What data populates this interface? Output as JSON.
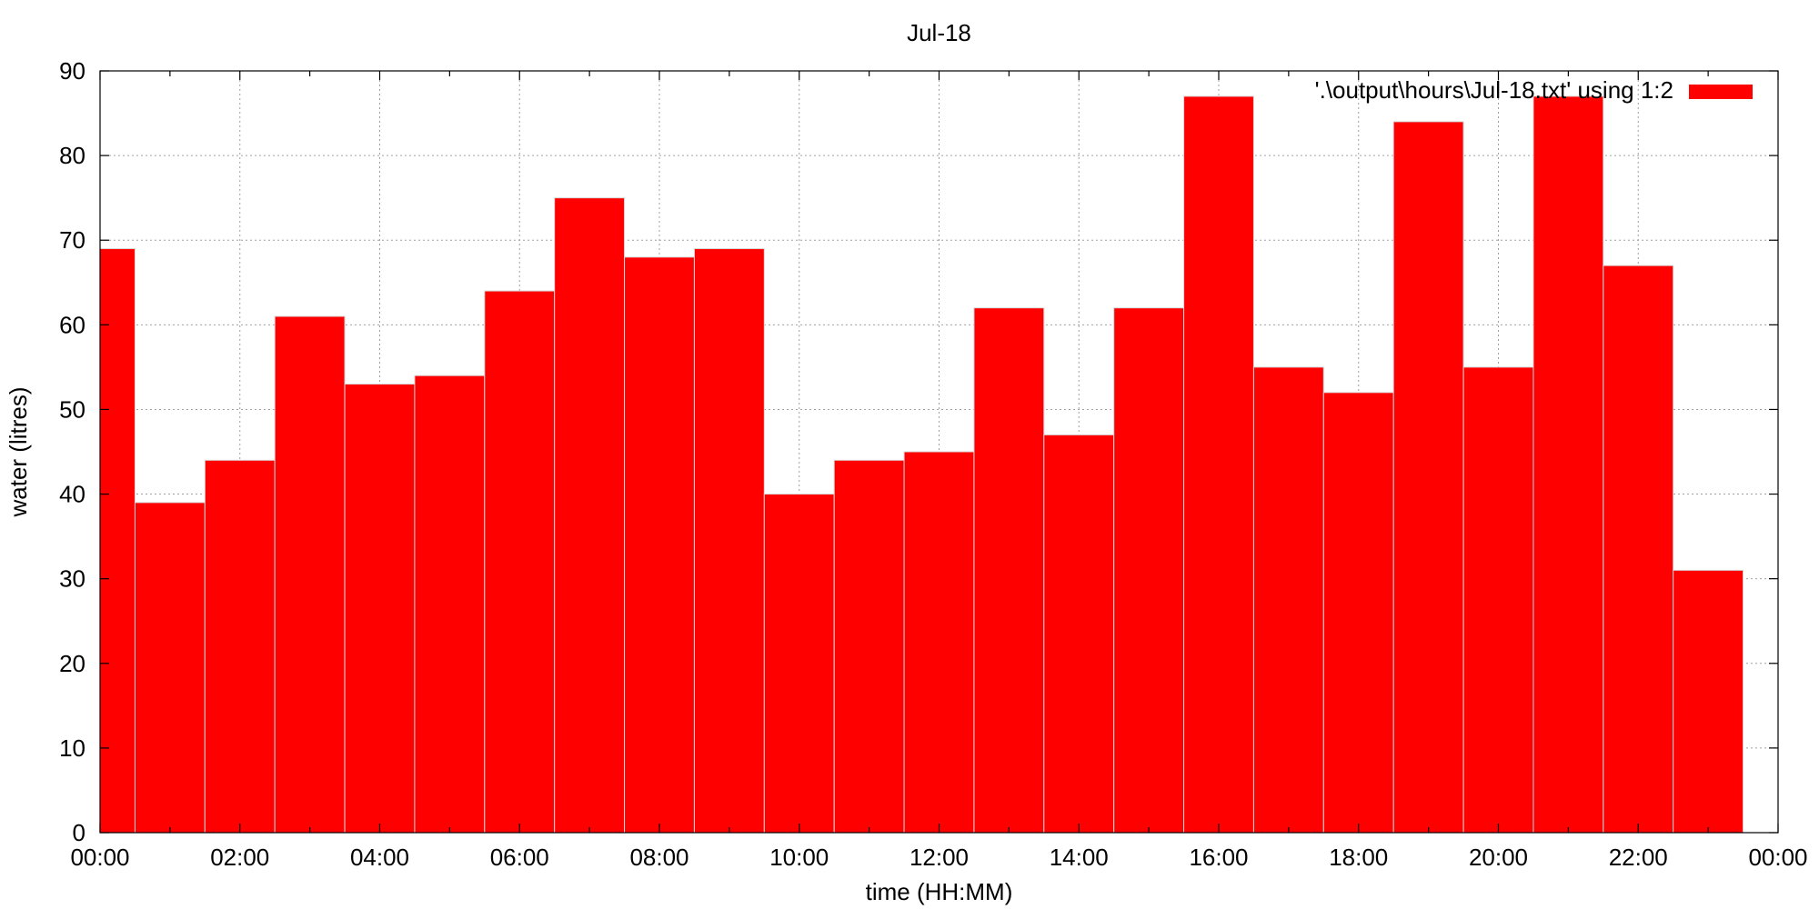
{
  "chart_data": {
    "type": "bar",
    "title": "Jul-18",
    "xlabel": "time (HH:MM)",
    "ylabel": "water (litres)",
    "ylim": [
      0,
      90
    ],
    "yticks": [
      "0",
      "10",
      "20",
      "30",
      "40",
      "50",
      "60",
      "70",
      "80",
      "90"
    ],
    "xlim": [
      "00:00",
      "24:00"
    ],
    "xticks": [
      "00:00",
      "02:00",
      "04:00",
      "06:00",
      "08:00",
      "10:00",
      "12:00",
      "14:00",
      "16:00",
      "18:00",
      "20:00",
      "22:00",
      "00:00"
    ],
    "grid": true,
    "legend_position": "top-right",
    "bar_color": "#ff0000",
    "series": [
      {
        "name": "'.\\output\\hours\\Jul-18.txt' using 1:2",
        "x": [
          "00:00",
          "01:00",
          "02:00",
          "03:00",
          "04:00",
          "05:00",
          "06:00",
          "07:00",
          "08:00",
          "09:00",
          "10:00",
          "11:00",
          "12:00",
          "13:00",
          "14:00",
          "15:00",
          "16:00",
          "17:00",
          "18:00",
          "19:00",
          "20:00",
          "21:00",
          "22:00",
          "23:00"
        ],
        "values": [
          69,
          39,
          44,
          61,
          53,
          54,
          64,
          75,
          68,
          69,
          40,
          44,
          45,
          62,
          47,
          62,
          87,
          55,
          52,
          84,
          55,
          87,
          67,
          31
        ]
      }
    ]
  }
}
